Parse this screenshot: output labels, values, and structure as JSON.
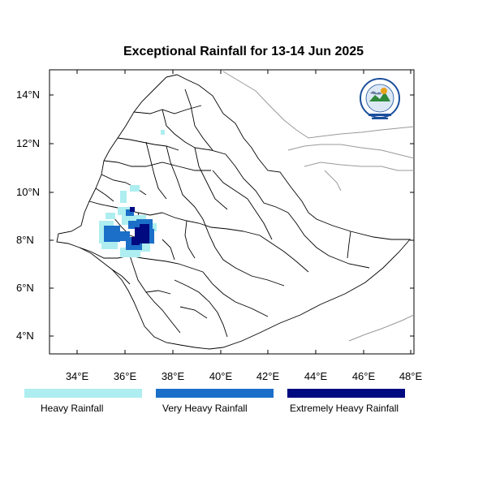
{
  "title": "Exceptional Rainfall for 13-14 Jun 2025",
  "axes": {
    "y_ticks": [
      "14°N",
      "12°N",
      "10°N",
      "8°N",
      "6°N",
      "4°N"
    ],
    "x_ticks": [
      "34°E",
      "36°E",
      "38°E",
      "40°E",
      "42°E",
      "44°E",
      "46°E",
      "48°E"
    ]
  },
  "legend": [
    {
      "label": "Heavy Rainfall",
      "color": "#aeeef0"
    },
    {
      "label": "Very Heavy Rainfall",
      "color": "#1b6fc8"
    },
    {
      "label": "Extremely Heavy Rainfall",
      "color": "#000a80"
    }
  ],
  "colors": {
    "boundary": "#000000",
    "neighbor_border": "#999999",
    "frame": "#000000"
  },
  "logo": {
    "icon": "meteorology-agency-seal-icon"
  }
}
